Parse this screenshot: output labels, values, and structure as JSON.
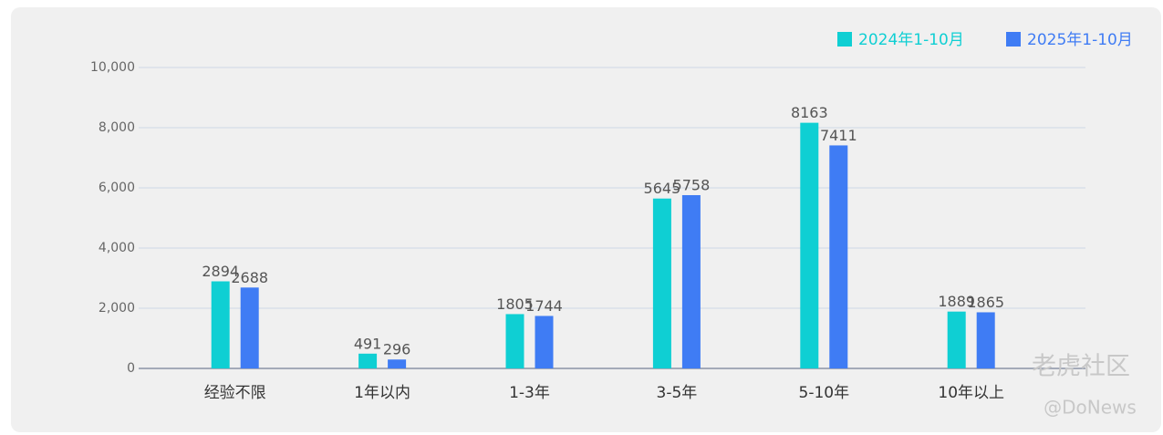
{
  "chart_data": {
    "type": "bar",
    "categories": [
      "经验不限",
      "1年以内",
      "1-3年",
      "3-5年",
      "5-10年",
      "10年以上"
    ],
    "series": [
      {
        "name": "2024年1-10月",
        "color": "#0fcfd3",
        "values": [
          2894,
          491,
          1805,
          5645,
          8163,
          1889
        ]
      },
      {
        "name": "2025年1-10月",
        "color": "#3f7cf4",
        "values": [
          2688,
          296,
          1744,
          5758,
          7411,
          1865
        ]
      }
    ],
    "ylim": [
      0,
      10000
    ],
    "yticks": [
      0,
      {
        "value": 2000,
        "label": "2,000"
      },
      {
        "value": 4000,
        "label": "4,000"
      },
      {
        "value": 6000,
        "label": "6,000"
      },
      {
        "value": 8000,
        "label": "8,000"
      },
      {
        "value": 10000,
        "label": "10,000"
      }
    ],
    "grid": true,
    "legend": "top-right",
    "watermarks": [
      "老虎社区",
      "@DoNews"
    ]
  }
}
